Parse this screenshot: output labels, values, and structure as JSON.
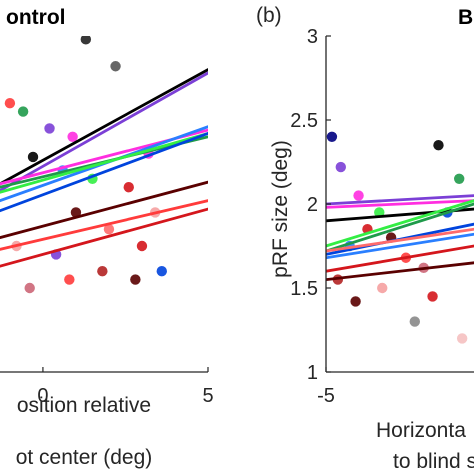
{
  "figure": {
    "panel_a_title": "ontrol",
    "panel_b_letter": "(b)",
    "panel_b_title_fragment": "B"
  },
  "chart_data": [
    {
      "panel": "a",
      "type": "scatter",
      "title": "ontrol",
      "xlabel_lines": [
        "osition relative",
        "ot center (deg)"
      ],
      "ylabel": "",
      "xticks": [
        0,
        5
      ],
      "xlim": [
        -1.3,
        5
      ],
      "ylim": [
        1,
        3
      ],
      "grid": false,
      "fit_lines": [
        {
          "color": "#000000",
          "x": [
            -1.3,
            5
          ],
          "y": [
            2.12,
            2.8
          ]
        },
        {
          "color": "#7b3fd6",
          "x": [
            -1.3,
            5
          ],
          "y": [
            2.08,
            2.78
          ]
        },
        {
          "color": "#ff2ee0",
          "x": [
            -1.3,
            5
          ],
          "y": [
            2.12,
            2.44
          ]
        },
        {
          "color": "#2a7fff",
          "x": [
            -1.3,
            5
          ],
          "y": [
            2.02,
            2.46
          ]
        },
        {
          "color": "#1f9a4a",
          "x": [
            -1.3,
            5
          ],
          "y": [
            2.1,
            2.4
          ]
        },
        {
          "color": "#33ee44",
          "x": [
            -1.3,
            5
          ],
          "y": [
            2.07,
            2.42
          ]
        },
        {
          "color": "#0044dd",
          "x": [
            -1.3,
            5
          ],
          "y": [
            1.96,
            2.42
          ]
        },
        {
          "color": "#5a0000",
          "x": [
            -1.3,
            5
          ],
          "y": [
            1.8,
            2.13
          ]
        },
        {
          "color": "#ff3b3b",
          "x": [
            -1.3,
            5
          ],
          "y": [
            1.73,
            2.02
          ]
        },
        {
          "color": "#d4161c",
          "x": [
            -1.3,
            5
          ],
          "y": [
            1.63,
            1.97
          ]
        }
      ],
      "points": [
        {
          "x": 1.3,
          "y": 2.98,
          "color": "#222222"
        },
        {
          "x": 2.2,
          "y": 2.82,
          "color": "#555555"
        },
        {
          "x": 0.2,
          "y": 2.45,
          "color": "#7b3fd6"
        },
        {
          "x": 0.9,
          "y": 2.4,
          "color": "#ff2ee0"
        },
        {
          "x": -0.6,
          "y": 2.55,
          "color": "#1f9a4a"
        },
        {
          "x": -1.0,
          "y": 2.6,
          "color": "#ff3b3b"
        },
        {
          "x": -0.3,
          "y": 2.28,
          "color": "#000000"
        },
        {
          "x": 0.6,
          "y": 2.2,
          "color": "#2a7fff"
        },
        {
          "x": 1.5,
          "y": 2.15,
          "color": "#33ee44"
        },
        {
          "x": 2.6,
          "y": 2.1,
          "color": "#d4161c"
        },
        {
          "x": 3.2,
          "y": 2.3,
          "color": "#ff2ee0"
        },
        {
          "x": 1.0,
          "y": 1.95,
          "color": "#5a0000"
        },
        {
          "x": 2.0,
          "y": 1.85,
          "color": "#ff6b6b"
        },
        {
          "x": 3.0,
          "y": 1.75,
          "color": "#d4161c"
        },
        {
          "x": 0.4,
          "y": 1.7,
          "color": "#7b3fd6"
        },
        {
          "x": -0.8,
          "y": 1.75,
          "color": "#f5a0a0"
        },
        {
          "x": 1.8,
          "y": 1.6,
          "color": "#b22222"
        },
        {
          "x": 0.8,
          "y": 1.55,
          "color": "#ff3b3b"
        },
        {
          "x": 2.8,
          "y": 1.55,
          "color": "#5a0000"
        },
        {
          "x": -0.4,
          "y": 1.5,
          "color": "#cc6677"
        },
        {
          "x": 3.6,
          "y": 1.6,
          "color": "#0044dd"
        },
        {
          "x": 3.4,
          "y": 1.95,
          "color": "#f5a0a0"
        }
      ]
    },
    {
      "panel": "b",
      "type": "scatter",
      "title": "B",
      "xlabel_lines": [
        "Horizonta",
        "to blind s"
      ],
      "ylabel": "pRF size (deg)",
      "xticks": [
        -5
      ],
      "yticks": [
        1,
        1.5,
        2,
        2.5,
        3
      ],
      "xlim": [
        -5,
        0
      ],
      "ylim": [
        1,
        3
      ],
      "grid": false,
      "fit_lines": [
        {
          "color": "#7b3fd6",
          "x": [
            -5,
            0
          ],
          "y": [
            2.0,
            2.05
          ]
        },
        {
          "color": "#ff2ee0",
          "x": [
            -5,
            0
          ],
          "y": [
            1.98,
            2.02
          ]
        },
        {
          "color": "#000000",
          "x": [
            -5,
            0
          ],
          "y": [
            1.9,
            1.97
          ]
        },
        {
          "color": "#1f9a4a",
          "x": [
            -5,
            0
          ],
          "y": [
            1.72,
            2.0
          ]
        },
        {
          "color": "#33ee44",
          "x": [
            -5,
            0
          ],
          "y": [
            1.75,
            2.02
          ]
        },
        {
          "color": "#2a7fff",
          "x": [
            -5,
            0
          ],
          "y": [
            1.68,
            1.82
          ]
        },
        {
          "color": "#0044dd",
          "x": [
            -5,
            0
          ],
          "y": [
            1.7,
            1.88
          ]
        },
        {
          "color": "#ff6b6b",
          "x": [
            -5,
            0
          ],
          "y": [
            1.72,
            1.85
          ]
        },
        {
          "color": "#d4161c",
          "x": [
            -5,
            0
          ],
          "y": [
            1.6,
            1.75
          ]
        },
        {
          "color": "#5a0000",
          "x": [
            -5,
            0
          ],
          "y": [
            1.55,
            1.65
          ]
        }
      ],
      "points": [
        {
          "x": -4.8,
          "y": 2.4,
          "color": "#000080"
        },
        {
          "x": -4.5,
          "y": 2.22,
          "color": "#7b3fd6"
        },
        {
          "x": -3.9,
          "y": 2.05,
          "color": "#ff2ee0"
        },
        {
          "x": -3.2,
          "y": 1.95,
          "color": "#33ee44"
        },
        {
          "x": -3.6,
          "y": 1.85,
          "color": "#d4161c"
        },
        {
          "x": -4.2,
          "y": 1.75,
          "color": "#2a7fff"
        },
        {
          "x": -2.8,
          "y": 1.8,
          "color": "#5a0000"
        },
        {
          "x": -2.3,
          "y": 1.68,
          "color": "#ff3b3b"
        },
        {
          "x": -1.7,
          "y": 1.62,
          "color": "#cc6677"
        },
        {
          "x": -4.6,
          "y": 1.55,
          "color": "#b22222"
        },
        {
          "x": -3.1,
          "y": 1.5,
          "color": "#f5a0a0"
        },
        {
          "x": -2.0,
          "y": 1.3,
          "color": "#888888"
        },
        {
          "x": -0.4,
          "y": 1.2,
          "color": "#f5c0c0"
        },
        {
          "x": -1.2,
          "y": 2.35,
          "color": "#000000"
        },
        {
          "x": -0.5,
          "y": 2.15,
          "color": "#1f9a4a"
        },
        {
          "x": -0.9,
          "y": 1.95,
          "color": "#0044dd"
        },
        {
          "x": -4.0,
          "y": 1.42,
          "color": "#5a0000"
        },
        {
          "x": -1.4,
          "y": 1.45,
          "color": "#d4161c"
        }
      ]
    }
  ]
}
